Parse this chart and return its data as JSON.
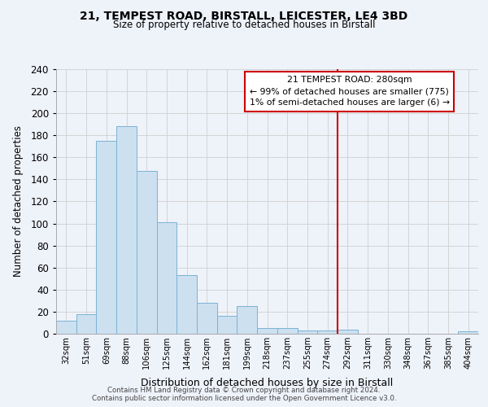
{
  "title1": "21, TEMPEST ROAD, BIRSTALL, LEICESTER, LE4 3BD",
  "title2": "Size of property relative to detached houses in Birstall",
  "xlabel": "Distribution of detached houses by size in Birstall",
  "ylabel": "Number of detached properties",
  "bar_labels": [
    "32sqm",
    "51sqm",
    "69sqm",
    "88sqm",
    "106sqm",
    "125sqm",
    "144sqm",
    "162sqm",
    "181sqm",
    "199sqm",
    "218sqm",
    "237sqm",
    "255sqm",
    "274sqm",
    "292sqm",
    "311sqm",
    "330sqm",
    "348sqm",
    "367sqm",
    "385sqm",
    "404sqm"
  ],
  "bar_values": [
    12,
    18,
    175,
    188,
    148,
    101,
    53,
    28,
    16,
    25,
    5,
    5,
    3,
    3,
    4,
    0,
    0,
    0,
    0,
    0,
    2
  ],
  "bar_color": "#cce0f0",
  "bar_edge_color": "#7ab3d4",
  "background_color": "#eef2f9",
  "grid_color": "#d0d0d0",
  "vline_x_index": 13.5,
  "vline_color": "#cc0000",
  "annotation_title": "21 TEMPEST ROAD: 280sqm",
  "annotation_line1": "← 99% of detached houses are smaller (775)",
  "annotation_line2": "1% of semi-detached houses are larger (6) →",
  "annotation_box_color": "white",
  "annotation_box_edge": "#cc0000",
  "ylim": [
    0,
    240
  ],
  "yticks": [
    0,
    20,
    40,
    60,
    80,
    100,
    120,
    140,
    160,
    180,
    200,
    220,
    240
  ],
  "footer1": "Contains HM Land Registry data © Crown copyright and database right 2024.",
  "footer2": "Contains public sector information licensed under the Open Government Licence v3.0."
}
